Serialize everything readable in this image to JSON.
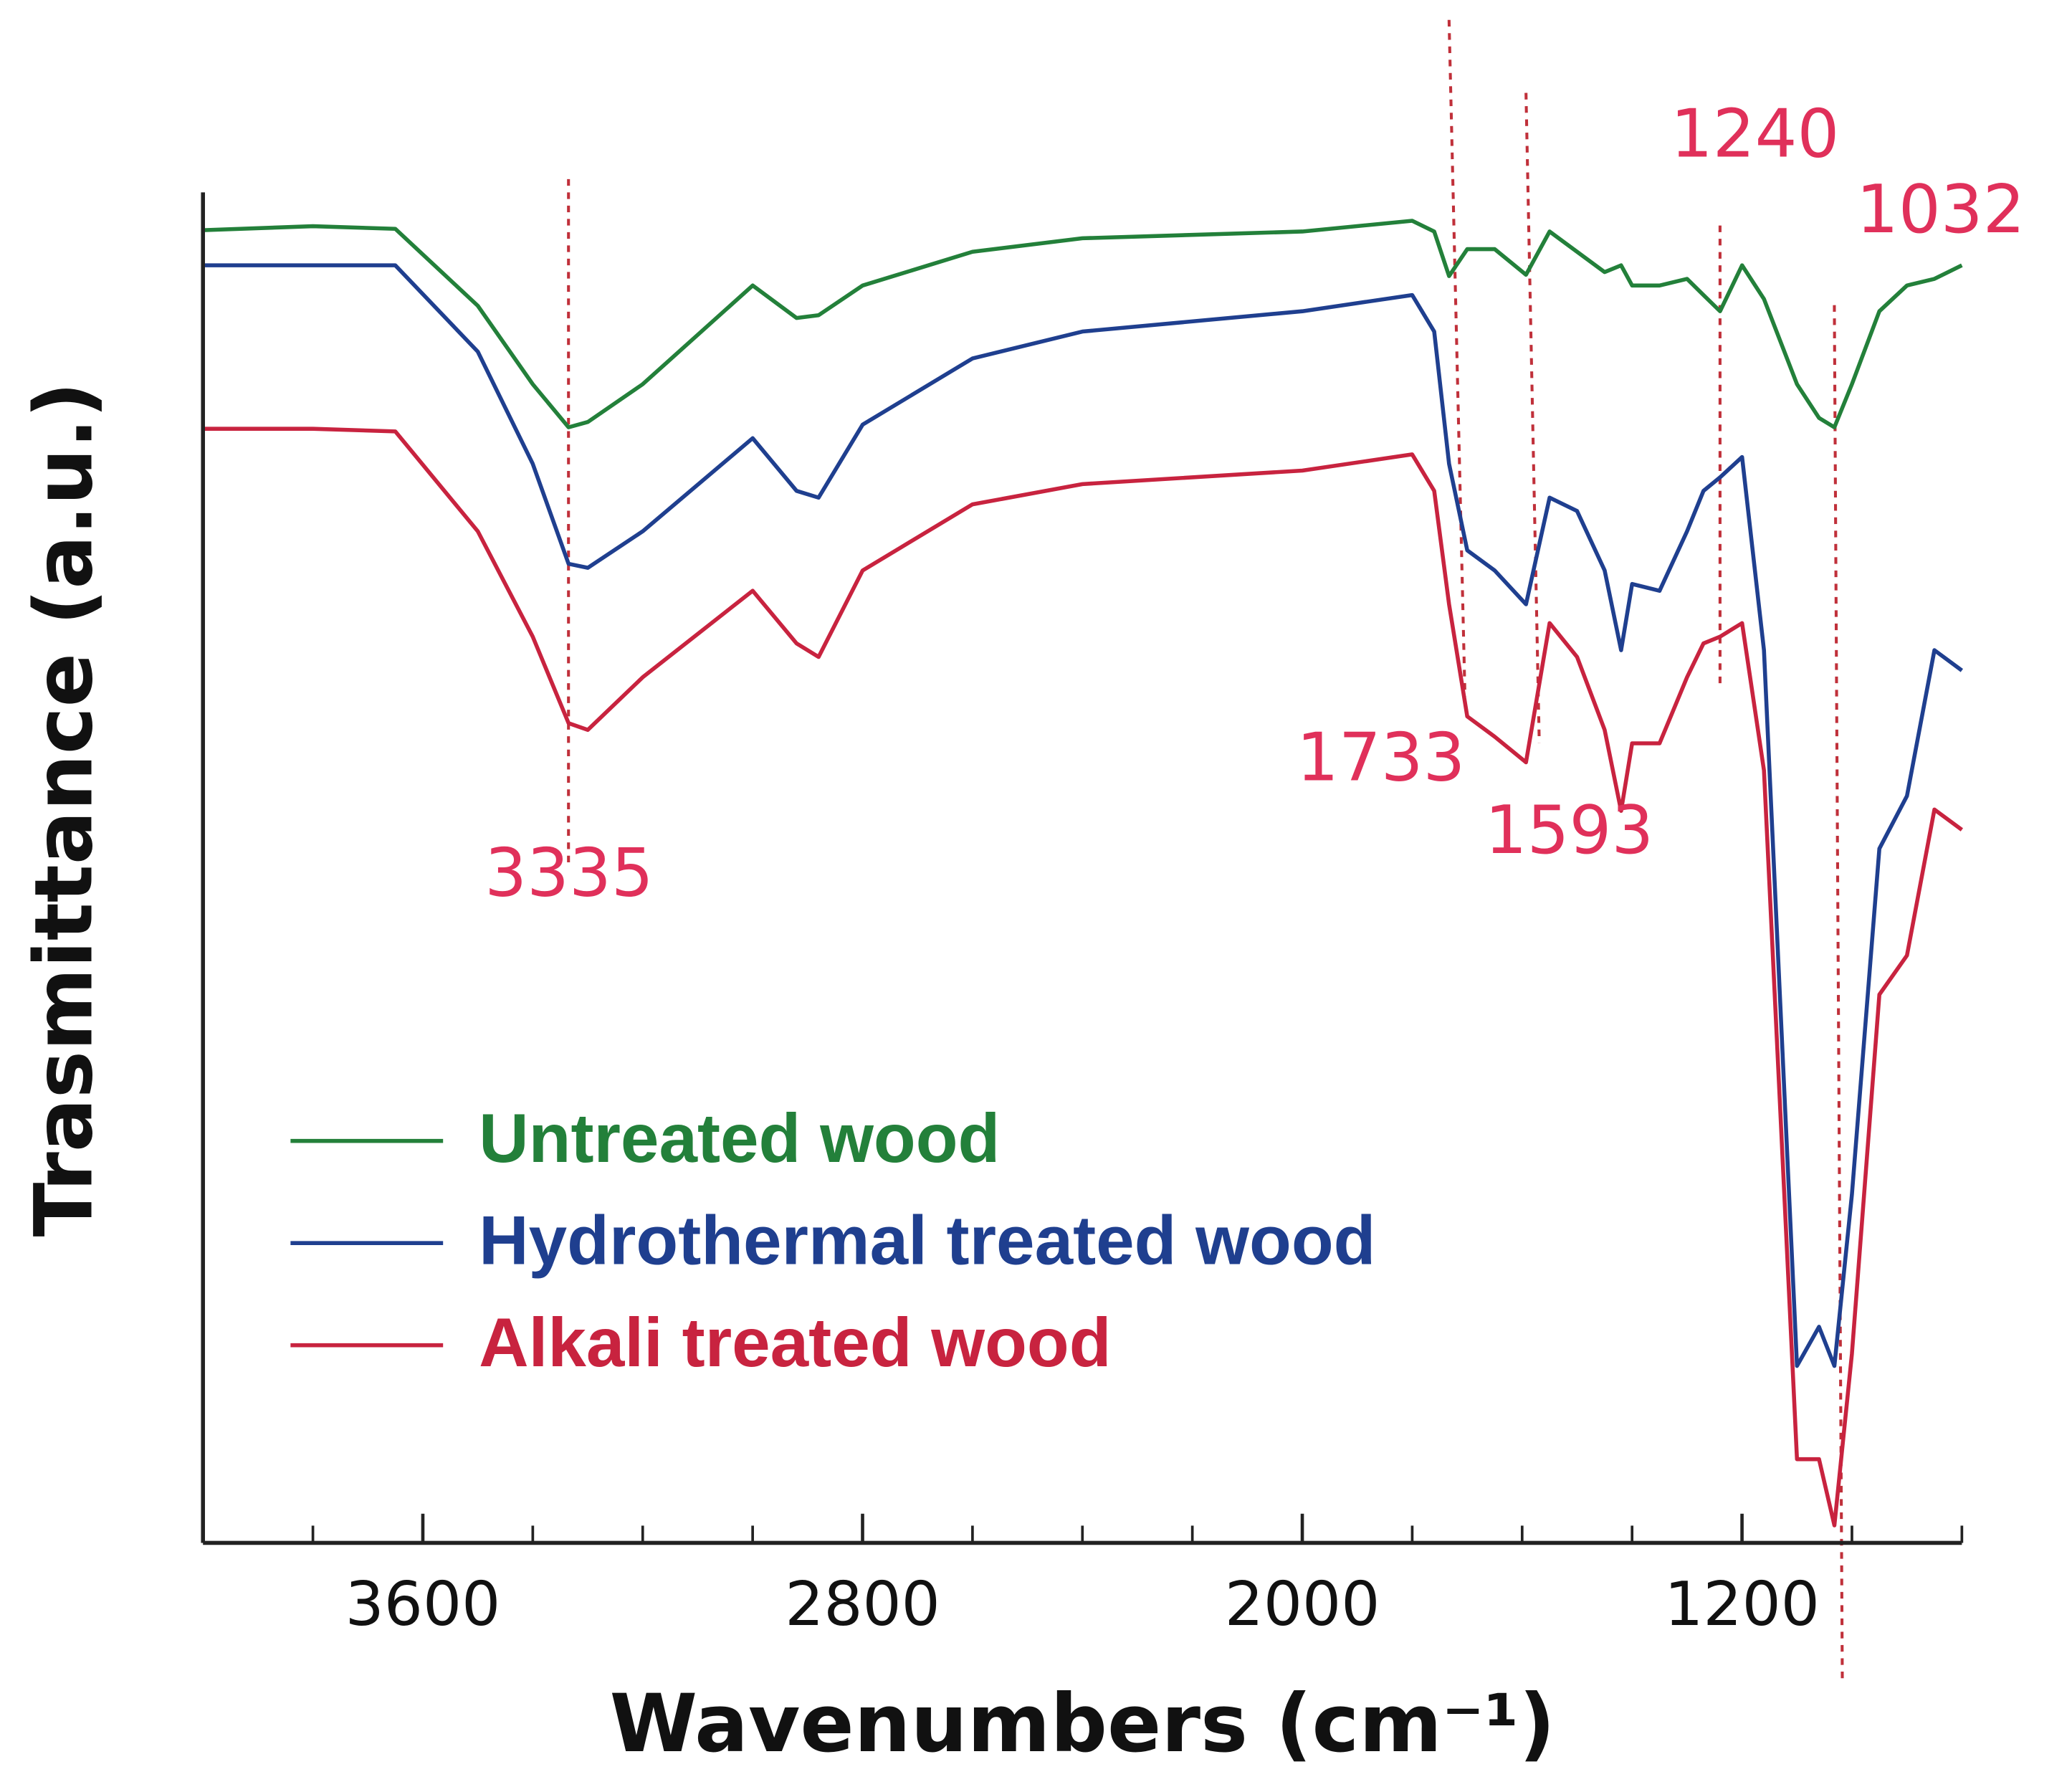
{
  "chart_data": {
    "type": "line",
    "xlabel": "Wavenumbers (cm⁻¹)",
    "ylabel": "Trasmittance (a.u.)",
    "xlim": [
      4000,
      800
    ],
    "ylim": [
      0,
      100
    ],
    "xticks": [
      3600,
      2800,
      2000,
      1200
    ],
    "xminorticks": [
      4000,
      3800,
      3400,
      3200,
      3000,
      2600,
      2400,
      2200,
      1800,
      1600,
      1400,
      1000,
      800
    ],
    "x": [
      4000,
      3800,
      3650,
      3500,
      3400,
      3335,
      3300,
      3200,
      3000,
      2920,
      2880,
      2800,
      2600,
      2400,
      2000,
      1800,
      1760,
      1733,
      1700,
      1650,
      1593,
      1550,
      1500,
      1450,
      1420,
      1400,
      1350,
      1300,
      1270,
      1240,
      1200,
      1160,
      1100,
      1060,
      1032,
      1000,
      950,
      900,
      850,
      800
    ],
    "series": [
      {
        "name": "Untreated wood",
        "color": "#23803a",
        "values": [
          97.2,
          97.5,
          97.3,
          91.6,
          85.8,
          82.6,
          83.0,
          85.8,
          93.1,
          90.7,
          90.9,
          93.1,
          95.6,
          96.6,
          97.1,
          97.9,
          97.1,
          93.8,
          95.8,
          95.8,
          93.9,
          97.1,
          95.6,
          94.1,
          94.6,
          93.1,
          93.1,
          93.6,
          92.4,
          91.2,
          94.6,
          92.1,
          85.8,
          83.3,
          82.6,
          85.8,
          91.2,
          93.1,
          93.6,
          94.6
        ]
      },
      {
        "name": "Hydrothermal treated wood",
        "color": "#1f3f8f",
        "values": [
          94.6,
          94.6,
          94.6,
          88.2,
          79.9,
          72.5,
          72.2,
          74.9,
          81.8,
          77.9,
          77.4,
          82.8,
          87.7,
          89.7,
          91.2,
          92.4,
          89.7,
          79.9,
          73.5,
          72.0,
          69.5,
          77.4,
          76.4,
          72.0,
          66.1,
          71.0,
          70.5,
          74.9,
          77.9,
          78.9,
          80.4,
          66.1,
          13.1,
          16.0,
          13.1,
          25.8,
          51.4,
          55.3,
          66.1,
          64.6
        ]
      },
      {
        "name": "Alkali treated wood",
        "color": "#c8233f",
        "values": [
          82.5,
          82.5,
          82.3,
          74.9,
          67.1,
          60.7,
          60.2,
          64.1,
          70.5,
          66.6,
          65.6,
          72.0,
          76.9,
          78.4,
          79.4,
          80.6,
          77.9,
          69.5,
          61.2,
          59.7,
          57.8,
          68.1,
          65.6,
          60.2,
          54.2,
          59.2,
          59.2,
          64.1,
          66.6,
          67.1,
          68.1,
          57.2,
          6.2,
          6.2,
          1.3,
          14.0,
          40.6,
          43.5,
          54.3,
          52.8
        ]
      }
    ],
    "annotations": [
      {
        "label": "3335",
        "x": 3335
      },
      {
        "label": "1733",
        "x": 1733
      },
      {
        "label": "1593",
        "x": 1593
      },
      {
        "label": "1240",
        "x": 1240
      },
      {
        "label": "1032",
        "x": 1032
      }
    ]
  }
}
